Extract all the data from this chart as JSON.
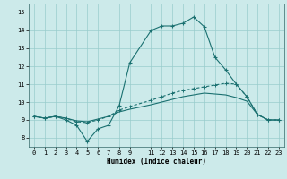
{
  "xlabel": "Humidex (Indice chaleur)",
  "background_color": "#cceaea",
  "grid_color": "#99cccc",
  "line_color": "#1a7070",
  "xlim": [
    -0.5,
    23.5
  ],
  "ylim": [
    7.5,
    15.5
  ],
  "yticks": [
    8,
    9,
    10,
    11,
    12,
    13,
    14,
    15
  ],
  "xticks": [
    0,
    1,
    2,
    3,
    4,
    5,
    6,
    7,
    8,
    9,
    11,
    12,
    13,
    14,
    15,
    16,
    17,
    18,
    19,
    20,
    21,
    22,
    23
  ],
  "series1_x": [
    0,
    1,
    2,
    3,
    4,
    5,
    6,
    7,
    8,
    9,
    11,
    12,
    13,
    14,
    15,
    16,
    17,
    18,
    19,
    20,
    21,
    22,
    23
  ],
  "series1_y": [
    9.2,
    9.1,
    9.2,
    9.0,
    8.7,
    7.8,
    8.5,
    8.7,
    9.8,
    12.2,
    14.0,
    14.25,
    14.25,
    14.4,
    14.75,
    14.2,
    12.5,
    11.8,
    11.0,
    10.3,
    9.3,
    9.0,
    9.0
  ],
  "series2_x": [
    0,
    1,
    2,
    3,
    4,
    5,
    6,
    7,
    8,
    9,
    11,
    12,
    13,
    14,
    15,
    16,
    17,
    18,
    19,
    20,
    21,
    22,
    23
  ],
  "series2_y": [
    9.2,
    9.1,
    9.2,
    9.1,
    8.9,
    8.85,
    9.0,
    9.2,
    9.55,
    9.75,
    10.1,
    10.3,
    10.5,
    10.65,
    10.75,
    10.85,
    10.95,
    11.05,
    11.0,
    10.3,
    9.3,
    9.0,
    9.0
  ],
  "series3_x": [
    0,
    1,
    2,
    3,
    4,
    5,
    6,
    7,
    8,
    9,
    11,
    12,
    13,
    14,
    15,
    16,
    17,
    18,
    19,
    20,
    21,
    22,
    23
  ],
  "series3_y": [
    9.2,
    9.1,
    9.2,
    9.1,
    8.95,
    8.9,
    9.05,
    9.2,
    9.45,
    9.6,
    9.85,
    10.0,
    10.15,
    10.3,
    10.4,
    10.5,
    10.45,
    10.4,
    10.25,
    10.05,
    9.3,
    9.0,
    9.0
  ]
}
